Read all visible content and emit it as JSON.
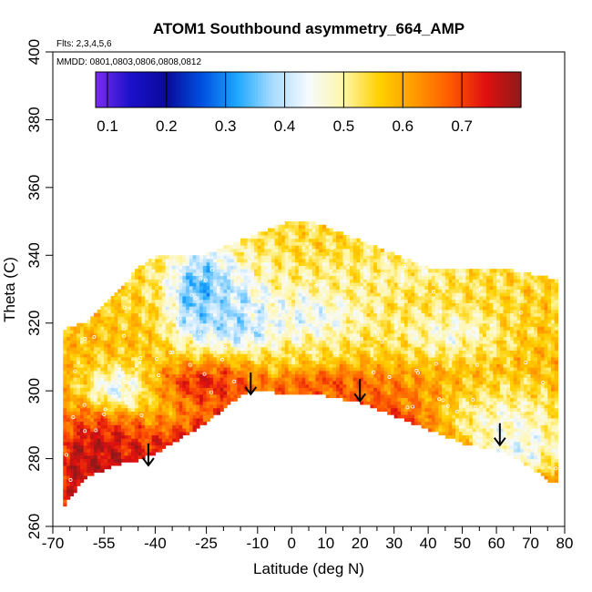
{
  "chart_data": {
    "type": "heatmap",
    "title": "ATOM1 Southbound asymmetry_664_AMP",
    "subtitle_flights": "Flts: 2,3,4,5,6",
    "subtitle_dates": "MMDD: 0801,0803,0806,0808,0812",
    "xlabel": "Latitude (deg N)",
    "ylabel": "Theta (C)",
    "xlim": [
      -70,
      80
    ],
    "ylim": [
      260,
      400
    ],
    "x_tick_labels": [
      "-70",
      "-55",
      "-40",
      "-25",
      "-10",
      "0",
      "10",
      "20",
      "30",
      "40",
      "50",
      "60",
      "70",
      "80"
    ],
    "x_tick_values": [
      -70,
      -55,
      -40,
      -25,
      -10,
      0,
      10,
      20,
      30,
      40,
      50,
      60,
      70,
      80
    ],
    "x_minor_ticks": [
      -65,
      -60,
      -50,
      -45,
      -35,
      -30,
      -20,
      -15,
      -5,
      5,
      15,
      25,
      35,
      45,
      55,
      65,
      75
    ],
    "y_tick_labels": [
      "260",
      "280",
      "300",
      "320",
      "340",
      "360",
      "380",
      "400"
    ],
    "y_tick_values": [
      260,
      280,
      300,
      320,
      340,
      360,
      380,
      400
    ],
    "colorbar": {
      "range": [
        0.08,
        0.8
      ],
      "tick_labels": [
        "0.1",
        "0.2",
        "0.3",
        "0.4",
        "0.5",
        "0.6",
        "0.7"
      ],
      "tick_values": [
        0.1,
        0.2,
        0.3,
        0.4,
        0.5,
        0.6,
        0.7
      ],
      "colors": [
        "#7b2cf0",
        "#1a10c8",
        "#0a0a9a",
        "#0050e0",
        "#1ea8ff",
        "#a8dcff",
        "#f6faff",
        "#fff6a8",
        "#ffd000",
        "#ff9a00",
        "#ff5a00",
        "#e01010",
        "#8e1a1a"
      ]
    },
    "arrows": [
      {
        "lat": -42,
        "theta": 278
      },
      {
        "lat": -12,
        "theta": 299
      },
      {
        "lat": 20,
        "theta": 297
      },
      {
        "lat": 61,
        "theta": 284
      }
    ],
    "data_envelope": {
      "lat": [
        -67,
        -66,
        -60,
        -55,
        -50,
        -45,
        -40,
        -35,
        -30,
        -25,
        -20,
        -15,
        -10,
        -5,
        0,
        5,
        10,
        15,
        20,
        25,
        30,
        35,
        40,
        45,
        50,
        55,
        60,
        65,
        70,
        75,
        78
      ],
      "theta_min": [
        265,
        268,
        275,
        277,
        279,
        280,
        282,
        285,
        288,
        291,
        295,
        299,
        301,
        300,
        299,
        300,
        299,
        298,
        297,
        295,
        293,
        291,
        289,
        287,
        285,
        284,
        283,
        281,
        278,
        274,
        273
      ],
      "theta_max": [
        318,
        318,
        320,
        325,
        330,
        336,
        339,
        340,
        339,
        340,
        342,
        344,
        346,
        348,
        350,
        350,
        348,
        346,
        344,
        342,
        340,
        338,
        336,
        336,
        336,
        336,
        336,
        335,
        334,
        333,
        333
      ]
    },
    "features": [
      {
        "lat": -26,
        "theta": 328,
        "value": 0.27,
        "width": 8,
        "height": 12,
        "note": "low-value core"
      },
      {
        "lat": -20,
        "theta": 322,
        "value": 0.38,
        "width": 14,
        "height": 16,
        "note": "low-value region"
      },
      {
        "lat": -13,
        "theta": 318,
        "value": 0.36,
        "width": 8,
        "height": 8,
        "note": "low-value region"
      },
      {
        "lat": 5,
        "theta": 322,
        "value": 0.44,
        "width": 20,
        "height": 10,
        "note": "low-value band"
      },
      {
        "lat": -5,
        "theta": 306,
        "value": 0.48,
        "width": 30,
        "height": 8,
        "note": "mid band"
      },
      {
        "lat": -45,
        "theta": 301,
        "value": 0.45,
        "width": 18,
        "height": 8,
        "note": "mid band"
      },
      {
        "lat": -50,
        "theta": 300,
        "value": 0.35,
        "width": 8,
        "height": 5,
        "note": "low cell"
      },
      {
        "lat": 62,
        "theta": 292,
        "value": 0.48,
        "width": 20,
        "height": 12,
        "note": "pale patch"
      },
      {
        "lat": 66,
        "theta": 282,
        "value": 0.44,
        "width": 14,
        "height": 9,
        "note": "pale patch"
      },
      {
        "lat": 46,
        "theta": 317,
        "value": 0.47,
        "width": 18,
        "height": 8,
        "note": "pale band"
      },
      {
        "lat": 30,
        "theta": 334,
        "value": 0.5,
        "width": 20,
        "height": 6,
        "note": "pale band"
      },
      {
        "lat": -25,
        "theta": 302,
        "value": 0.73,
        "width": 18,
        "height": 8,
        "note": "high band"
      },
      {
        "lat": -58,
        "theta": 280,
        "value": 0.76,
        "width": 16,
        "height": 14,
        "note": "high region"
      },
      {
        "lat": 10,
        "theta": 302,
        "value": 0.68,
        "width": 24,
        "height": 6,
        "note": "high band"
      }
    ]
  }
}
